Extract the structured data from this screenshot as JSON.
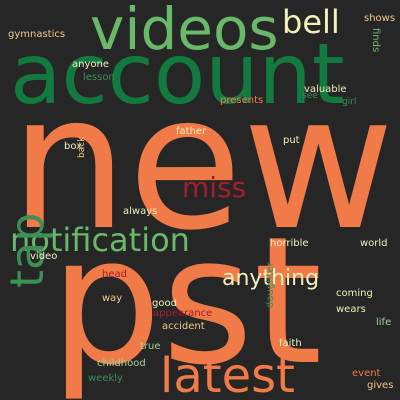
{
  "palette": {
    "background": "#262626",
    "orange": "#f07a48",
    "light_green": "#6ab96a",
    "dark_green": "#137a3f",
    "cream": "#f2f0bb",
    "crimson": "#a21f2e",
    "peach": "#f1c98a",
    "mint": "#9ed49a",
    "olive": "#3d8f58"
  },
  "words": [
    {
      "text": "new",
      "color": "orange"
    },
    {
      "text": "pst",
      "color": "orange"
    },
    {
      "text": "account",
      "color": "dark_green"
    },
    {
      "text": "videos",
      "color": "light_green"
    },
    {
      "text": "latest",
      "color": "orange"
    },
    {
      "text": "notification",
      "color": "light_green"
    },
    {
      "text": "tap",
      "color": "olive"
    },
    {
      "text": "bell",
      "color": "cream"
    },
    {
      "text": "miss",
      "color": "crimson"
    },
    {
      "text": "anything",
      "color": "cream"
    },
    {
      "text": "shows",
      "color": "peach"
    },
    {
      "text": "finds",
      "color": "light_green"
    },
    {
      "text": "gymnastics",
      "color": "peach"
    },
    {
      "text": "lesson",
      "color": "olive"
    },
    {
      "text": "anyone",
      "color": "cream"
    },
    {
      "text": "valuable",
      "color": "cream"
    },
    {
      "text": "presents",
      "color": "orange"
    },
    {
      "text": "see",
      "color": "olive"
    },
    {
      "text": "girl",
      "color": "olive"
    },
    {
      "text": "box",
      "color": "cream"
    },
    {
      "text": "back",
      "color": "peach"
    },
    {
      "text": "father",
      "color": "cream"
    },
    {
      "text": "put",
      "color": "cream"
    },
    {
      "text": "always",
      "color": "cream"
    },
    {
      "text": "horrible",
      "color": "cream"
    },
    {
      "text": "world",
      "color": "cream"
    },
    {
      "text": "video",
      "color": "cream"
    },
    {
      "text": "head",
      "color": "crimson"
    },
    {
      "text": "way",
      "color": "peach"
    },
    {
      "text": "good",
      "color": "cream"
    },
    {
      "text": "appearance",
      "color": "crimson"
    },
    {
      "text": "accident",
      "color": "peach"
    },
    {
      "text": "daughter",
      "color": "olive"
    },
    {
      "text": "coming",
      "color": "cream"
    },
    {
      "text": "wears",
      "color": "cream"
    },
    {
      "text": "life",
      "color": "mint"
    },
    {
      "text": "true",
      "color": "mint"
    },
    {
      "text": "faith",
      "color": "cream"
    },
    {
      "text": "childhood",
      "color": "mint"
    },
    {
      "text": "weekly",
      "color": "olive"
    },
    {
      "text": "event",
      "color": "orange"
    },
    {
      "text": "gives",
      "color": "peach"
    }
  ]
}
